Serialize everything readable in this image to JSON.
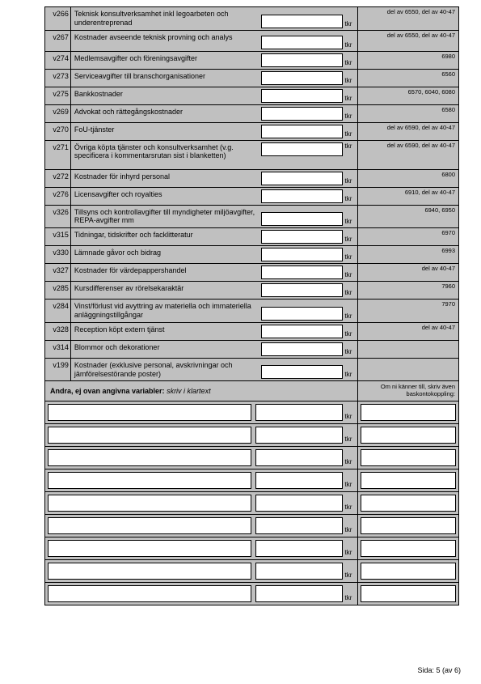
{
  "unit": "tkr",
  "rows": [
    {
      "code": "v266",
      "label": "Teknisk konsultverksamhet inkl legoarbeten och underentreprenad",
      "ref": "del av 6550, del av 40-47",
      "lines": 2
    },
    {
      "code": "v267",
      "label": "Kostnader avseende teknisk provning och analys",
      "ref": "del av 6550, del av 40-47",
      "lines": 2
    },
    {
      "code": "v274",
      "label": "Medlemsavgifter och föreningsavgifter",
      "ref": "6980",
      "lines": 1
    },
    {
      "code": "v273",
      "label": "Serviceavgifter till branschorganisationer",
      "ref": "6560",
      "lines": 1
    },
    {
      "code": "v275",
      "label": "Bankkostnader",
      "ref": "6570, 6040, 6080",
      "lines": 1
    },
    {
      "code": "v269",
      "label": "Advokat och rättegångskostnader",
      "ref": "6580",
      "lines": 1
    },
    {
      "code": "v270",
      "label": "FoU-tjänster",
      "ref": "del av 6590, del av 40-47",
      "lines": 1
    },
    {
      "code": "v271",
      "label": "Övriga köpta tjänster och konsultverksamhet (v.g. specificera i kommentarsrutan sist i blanketten)",
      "ref": "del av 6590, del av 40-47",
      "lines": 3
    },
    {
      "code": "v272",
      "label": "Kostnader för inhyrd personal",
      "ref": "6800",
      "lines": 1
    },
    {
      "code": "v276",
      "label": "Licensavgifter och royalties",
      "ref": "6910, del av 40-47",
      "lines": 1
    },
    {
      "code": "v326",
      "label": "Tillsyns och kontrollavgifter till myndigheter miljöavgifter, REPA-avgifter mm",
      "ref": "6940, 6950",
      "lines": 2
    },
    {
      "code": "v315",
      "label": "Tidningar, tidskrifter och facklitteratur",
      "ref": "6970",
      "lines": 1
    },
    {
      "code": "v330",
      "label": "Lämnade gåvor och bidrag",
      "ref": "6993",
      "lines": 1
    },
    {
      "code": "v327",
      "label": "Kostnader för värdepappershandel",
      "ref": "del av 40-47",
      "lines": 1
    },
    {
      "code": "v285",
      "label": "Kursdifferenser av rörelsekaraktär",
      "ref": "7960",
      "lines": 1
    },
    {
      "code": "v284",
      "label": "Vinst/förlust vid avyttring av materiella och immateriella anläggningstillgångar",
      "ref": "7970",
      "lines": 2
    },
    {
      "code": "v328",
      "label": "Reception köpt extern tjänst",
      "ref": "del av 40-47",
      "lines": 1
    },
    {
      "code": "v314",
      "label": "Blommor och dekorationer",
      "ref": "",
      "lines": 1
    },
    {
      "code": "v199",
      "label": "Kostnader (exklusive personal, avskrivningar och jämförelsestörande poster)",
      "ref": "",
      "lines": 2
    }
  ],
  "section": {
    "leftBold": "Andra, ej ovan angivna variabler:",
    "leftItalic": "skriv i klartext",
    "right": "Om ni känner till, skriv även baskontokoppling:"
  },
  "extraRowCount": 9,
  "footer": "Sida: 5 (av 6)"
}
